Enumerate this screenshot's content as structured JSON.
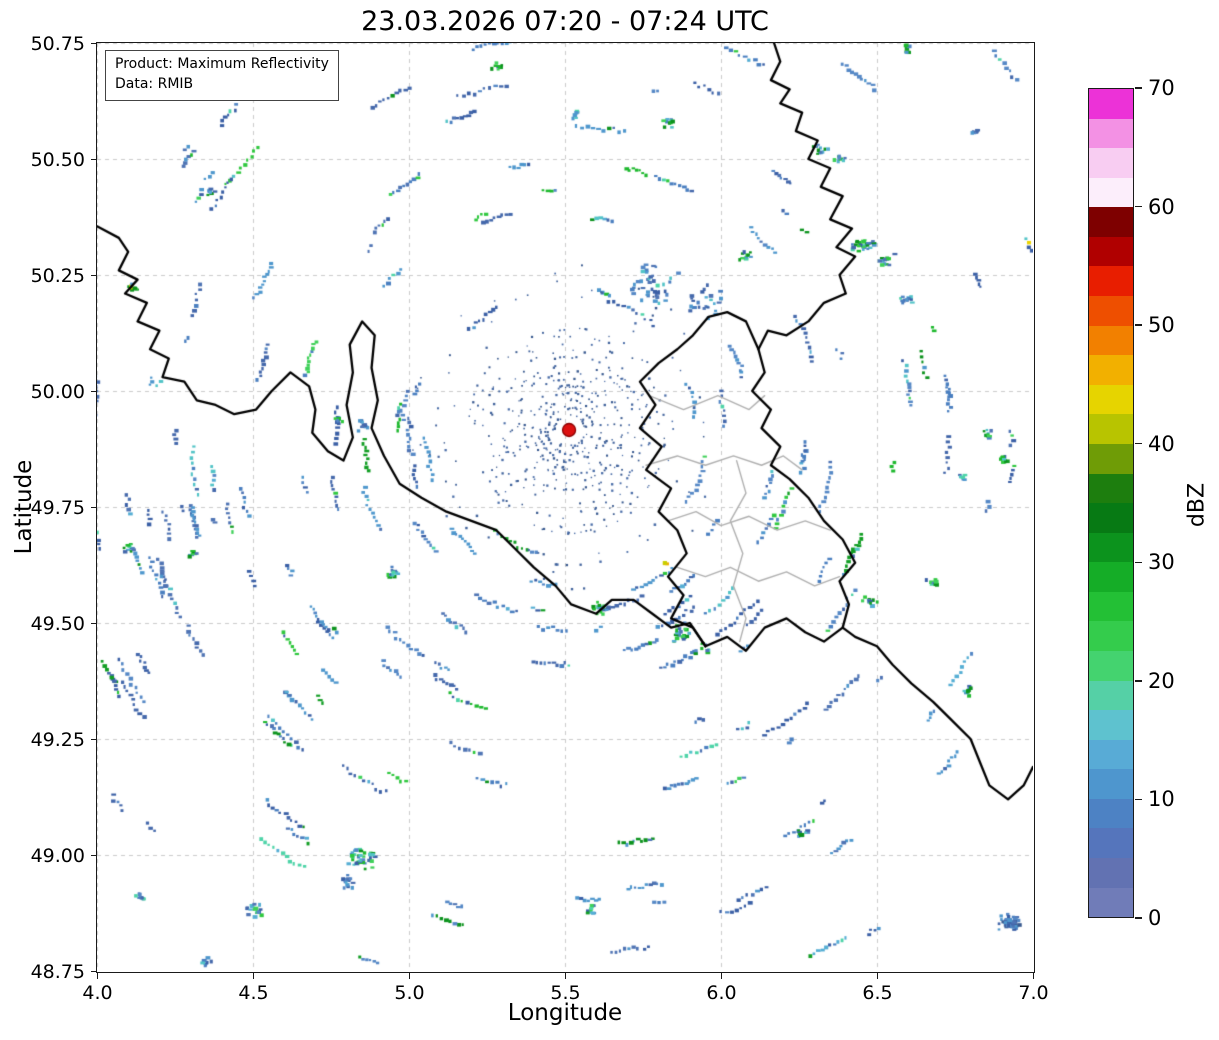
{
  "title": "23.03.2026 07:20 - 07:24 UTC",
  "info_box": {
    "line1": "Product: Maximum Reflectivity",
    "line2": "Data: RMIB"
  },
  "axes": {
    "xlabel": "Longitude",
    "ylabel": "Latitude",
    "x_ticks": [
      4.0,
      4.5,
      5.0,
      5.5,
      6.0,
      6.5,
      7.0
    ],
    "x_tick_labels": [
      "4.0",
      "4.5",
      "5.0",
      "5.5",
      "6.0",
      "6.5",
      "7.0"
    ],
    "y_ticks": [
      48.75,
      49.0,
      49.25,
      49.5,
      49.75,
      50.0,
      50.25,
      50.5,
      50.75
    ],
    "y_tick_labels": [
      "48.75",
      "49.00",
      "49.25",
      "49.50",
      "49.75",
      "50.00",
      "50.25",
      "50.50",
      "50.75"
    ],
    "xlim": [
      4.0,
      7.0
    ],
    "ylim": [
      48.75,
      50.75
    ],
    "grid": "dashed",
    "grid_color": "#cccccc"
  },
  "colorbar": {
    "label": "dBZ",
    "ticks": [
      0,
      10,
      20,
      30,
      40,
      50,
      60,
      70
    ],
    "tick_labels": [
      "0",
      "10",
      "20",
      "30",
      "40",
      "50",
      "60",
      "70"
    ],
    "min": 0,
    "max": 70,
    "band_step": 2.5,
    "band_colors": [
      "#707cb8",
      "#6272b2",
      "#5575bc",
      "#4d82c4",
      "#4e96ce",
      "#58abd6",
      "#5ec2cf",
      "#55d0a6",
      "#44d36f",
      "#34cc4c",
      "#23c035",
      "#15ad27",
      "#0c931d",
      "#077a14",
      "#1d7e0e",
      "#6f9c06",
      "#b8c400",
      "#e6d400",
      "#f2b000",
      "#f28000",
      "#ee4f00",
      "#e81e00",
      "#b00000",
      "#7e0000",
      "#fceefb",
      "#f8cdf2",
      "#f391e4",
      "#ec32d7"
    ]
  },
  "chart_data": {
    "type": "heatmap",
    "title": "23.03.2026 07:20 - 07:24 UTC",
    "xlabel": "Longitude",
    "ylabel": "Latitude",
    "value_label": "dBZ",
    "description": "Weather radar maximum reflectivity composite over Belgium/Luxembourg region; scattered low-dBZ clutter echoes arranged in concentric arcs around the radar site, with national borders in black and regional borders in gray.",
    "extent": {
      "lon_min": 4.0,
      "lon_max": 7.0,
      "lat_min": 48.75,
      "lat_max": 50.75
    },
    "radar_site": {
      "lon": 5.513,
      "lat": 49.916,
      "marker": "circle",
      "marker_color": "#dd1111",
      "marker_edge": "#8b0000"
    },
    "value_range_observed": [
      0,
      45
    ],
    "background_color": "#ffffff",
    "border_color_national": "#000000",
    "border_color_regional": "#b0b0b0",
    "palettes": {
      "blue": [
        "#3a5fa5",
        "#4468ab",
        "#4f74b4",
        "#4a7fc0",
        "#5588c6",
        "#4e97cd"
      ],
      "cyan": [
        "#55aed4",
        "#52c4c7",
        "#4ed4a8"
      ],
      "green": [
        "#3fd159",
        "#2fc83e",
        "#1eb92e",
        "#129e24",
        "#0c931d"
      ],
      "strong": [
        "#c9cf00",
        "#ecd400",
        "#f0b000"
      ],
      "center": [
        "#38598f",
        "#41639c",
        "#4a6da8"
      ]
    },
    "noise": {
      "seed": 20260323,
      "streak_count": 250,
      "min_r": 120,
      "max_r": 620,
      "center_count": 520,
      "center_r_min": 16,
      "center_r_max": 108,
      "mid_ring_count": 70,
      "mid_r_min": 118,
      "mid_r_max": 163
    },
    "clusters": [
      {
        "lon": 5.276,
        "lat": 50.703,
        "n": 8,
        "s": 7,
        "type": "green"
      },
      {
        "lon": 5.532,
        "lat": 50.599,
        "n": 6,
        "s": 6,
        "type": "blue"
      },
      {
        "lon": 5.83,
        "lat": 50.584,
        "n": 10,
        "s": 8,
        "type": "green"
      },
      {
        "lon": 6.317,
        "lat": 50.524,
        "n": 12,
        "s": 9,
        "type": "mix"
      },
      {
        "lon": 6.375,
        "lat": 50.502,
        "n": 8,
        "s": 7,
        "type": "green"
      },
      {
        "lon": 6.59,
        "lat": 50.739,
        "n": 6,
        "s": 6,
        "type": "green"
      },
      {
        "lon": 4.356,
        "lat": 50.433,
        "n": 8,
        "s": 7,
        "type": "green"
      },
      {
        "lon": 4.106,
        "lat": 50.224,
        "n": 10,
        "s": 6,
        "type": "yellowgreen"
      },
      {
        "lon": 6.452,
        "lat": 50.319,
        "n": 28,
        "s": 13,
        "type": "green"
      },
      {
        "lon": 6.523,
        "lat": 50.287,
        "n": 14,
        "s": 10,
        "type": "mix"
      },
      {
        "lon": 6.077,
        "lat": 50.297,
        "n": 10,
        "s": 8,
        "type": "green"
      },
      {
        "lon": 6.59,
        "lat": 50.196,
        "n": 12,
        "s": 9,
        "type": "blue"
      },
      {
        "lon": 6.81,
        "lat": 50.56,
        "n": 6,
        "s": 6,
        "type": "blue"
      },
      {
        "lon": 5.772,
        "lat": 50.228,
        "n": 40,
        "s": 34,
        "type": "blue"
      },
      {
        "lon": 5.933,
        "lat": 50.196,
        "n": 25,
        "s": 26,
        "type": "blue"
      },
      {
        "lon": 4.77,
        "lat": 49.944,
        "n": 8,
        "s": 7,
        "type": "green"
      },
      {
        "lon": 4.85,
        "lat": 49.93,
        "n": 10,
        "s": 8,
        "type": "blue"
      },
      {
        "lon": 6.853,
        "lat": 49.912,
        "n": 10,
        "s": 7,
        "type": "green"
      },
      {
        "lon": 6.901,
        "lat": 49.856,
        "n": 8,
        "s": 6,
        "type": "green"
      },
      {
        "lon": 6.772,
        "lat": 49.819,
        "n": 6,
        "s": 6,
        "type": "blue"
      },
      {
        "lon": 4.096,
        "lat": 49.664,
        "n": 10,
        "s": 7,
        "type": "green"
      },
      {
        "lon": 4.298,
        "lat": 49.651,
        "n": 8,
        "s": 7,
        "type": "green"
      },
      {
        "lon": 4.949,
        "lat": 49.61,
        "n": 12,
        "s": 9,
        "type": "green"
      },
      {
        "lon": 5.814,
        "lat": 49.631,
        "n": 3,
        "s": 3,
        "type": "yellow"
      },
      {
        "lon": 5.612,
        "lat": 49.532,
        "n": 16,
        "s": 11,
        "type": "green"
      },
      {
        "lon": 5.869,
        "lat": 49.481,
        "n": 20,
        "s": 14,
        "type": "green"
      },
      {
        "lon": 5.933,
        "lat": 49.446,
        "n": 12,
        "s": 10,
        "type": "mix"
      },
      {
        "lon": 6.471,
        "lat": 49.549,
        "n": 12,
        "s": 9,
        "type": "green"
      },
      {
        "lon": 6.67,
        "lat": 49.588,
        "n": 8,
        "s": 7,
        "type": "green"
      },
      {
        "lon": 6.782,
        "lat": 49.356,
        "n": 8,
        "s": 7,
        "type": "green"
      },
      {
        "lon": 6.253,
        "lat": 49.05,
        "n": 10,
        "s": 8,
        "type": "green"
      },
      {
        "lon": 5.58,
        "lat": 48.888,
        "n": 10,
        "s": 8,
        "type": "green"
      },
      {
        "lon": 4.843,
        "lat": 48.994,
        "n": 40,
        "s": 15,
        "type": "mix"
      },
      {
        "lon": 4.795,
        "lat": 48.946,
        "n": 14,
        "s": 9,
        "type": "blue"
      },
      {
        "lon": 4.5,
        "lat": 48.886,
        "n": 18,
        "s": 10,
        "type": "mix"
      },
      {
        "lon": 4.128,
        "lat": 48.912,
        "n": 10,
        "s": 7,
        "type": "blue"
      },
      {
        "lon": 6.92,
        "lat": 48.856,
        "n": 45,
        "s": 13,
        "type": "dense_blue"
      },
      {
        "lon": 4.346,
        "lat": 48.774,
        "n": 8,
        "s": 7,
        "type": "blue"
      }
    ],
    "borders": {
      "national": [
        [
          [
            4.0,
            50.355
          ],
          [
            4.07,
            50.33
          ],
          [
            4.1,
            50.3
          ],
          [
            4.07,
            50.26
          ],
          [
            4.13,
            50.24
          ],
          [
            4.09,
            50.21
          ],
          [
            4.16,
            50.19
          ],
          [
            4.13,
            50.15
          ],
          [
            4.2,
            50.13
          ],
          [
            4.17,
            50.09
          ],
          [
            4.23,
            50.07
          ],
          [
            4.21,
            50.03
          ],
          [
            4.28,
            50.02
          ],
          [
            4.32,
            49.98
          ],
          [
            4.38,
            49.97
          ],
          [
            4.44,
            49.95
          ],
          [
            4.51,
            49.96
          ],
          [
            4.56,
            50.0
          ],
          [
            4.62,
            50.04
          ],
          [
            4.68,
            50.01
          ],
          [
            4.7,
            49.96
          ],
          [
            4.69,
            49.91
          ],
          [
            4.74,
            49.87
          ],
          [
            4.79,
            49.85
          ],
          [
            4.82,
            49.9
          ],
          [
            4.8,
            49.97
          ],
          [
            4.82,
            50.04
          ],
          [
            4.81,
            50.1
          ],
          [
            4.85,
            50.15
          ],
          [
            4.89,
            50.12
          ],
          [
            4.88,
            50.05
          ],
          [
            4.9,
            49.98
          ],
          [
            4.88,
            49.92
          ],
          [
            4.92,
            49.86
          ],
          [
            4.97,
            49.8
          ],
          [
            5.04,
            49.77
          ],
          [
            5.12,
            49.74
          ],
          [
            5.2,
            49.72
          ],
          [
            5.28,
            49.7
          ],
          [
            5.34,
            49.66
          ],
          [
            5.4,
            49.62
          ],
          [
            5.47,
            49.58
          ],
          [
            5.52,
            49.54
          ],
          [
            5.6,
            49.52
          ],
          [
            5.65,
            49.55
          ],
          [
            5.72,
            49.55
          ],
          [
            5.78,
            49.52
          ],
          [
            5.84,
            49.49
          ],
          [
            5.9,
            49.5
          ],
          [
            5.95,
            49.45
          ]
        ],
        [
          [
            6.17,
            50.75
          ],
          [
            6.19,
            50.71
          ],
          [
            6.16,
            50.67
          ],
          [
            6.22,
            50.65
          ],
          [
            6.19,
            50.62
          ],
          [
            6.26,
            50.6
          ],
          [
            6.24,
            50.56
          ],
          [
            6.31,
            50.54
          ],
          [
            6.28,
            50.5
          ],
          [
            6.35,
            50.48
          ],
          [
            6.32,
            50.44
          ],
          [
            6.39,
            50.42
          ],
          [
            6.35,
            50.37
          ],
          [
            6.42,
            50.35
          ],
          [
            6.37,
            50.31
          ],
          [
            6.43,
            50.29
          ],
          [
            6.38,
            50.25
          ],
          [
            6.4,
            50.21
          ],
          [
            6.33,
            50.19
          ],
          [
            6.28,
            50.15
          ],
          [
            6.21,
            50.12
          ],
          [
            6.15,
            50.13
          ],
          [
            6.12,
            50.09
          ],
          [
            6.14,
            50.04
          ],
          [
            6.1,
            50.0
          ],
          [
            6.16,
            49.96
          ],
          [
            6.13,
            49.92
          ],
          [
            6.19,
            49.88
          ],
          [
            6.16,
            49.84
          ],
          [
            6.22,
            49.81
          ],
          [
            6.28,
            49.77
          ],
          [
            6.33,
            49.72
          ],
          [
            6.39,
            49.68
          ],
          [
            6.43,
            49.63
          ],
          [
            6.38,
            49.59
          ],
          [
            6.41,
            49.54
          ],
          [
            6.39,
            49.49
          ],
          [
            6.43,
            49.47
          ],
          [
            6.5,
            49.45
          ],
          [
            6.55,
            49.41
          ],
          [
            6.61,
            49.37
          ],
          [
            6.68,
            49.33
          ],
          [
            6.74,
            49.29
          ],
          [
            6.8,
            49.25
          ],
          [
            6.83,
            49.2
          ],
          [
            6.86,
            49.15
          ],
          [
            6.92,
            49.12
          ],
          [
            6.97,
            49.15
          ],
          [
            7.0,
            49.19
          ]
        ],
        [
          [
            5.95,
            49.45
          ],
          [
            5.91,
            49.49
          ],
          [
            5.84,
            49.51
          ],
          [
            5.88,
            49.56
          ],
          [
            5.83,
            49.6
          ],
          [
            5.89,
            49.65
          ],
          [
            5.86,
            49.7
          ],
          [
            5.8,
            49.74
          ],
          [
            5.84,
            49.79
          ],
          [
            5.76,
            49.83
          ],
          [
            5.81,
            49.88
          ],
          [
            5.74,
            49.92
          ],
          [
            5.79,
            49.97
          ],
          [
            5.74,
            50.02
          ],
          [
            5.8,
            50.06
          ],
          [
            5.86,
            50.09
          ],
          [
            5.91,
            50.12
          ],
          [
            5.96,
            50.16
          ],
          [
            6.02,
            50.17
          ],
          [
            6.08,
            50.15
          ],
          [
            6.12,
            50.09
          ]
        ],
        [
          [
            5.95,
            49.45
          ],
          [
            6.02,
            49.47
          ],
          [
            6.08,
            49.44
          ],
          [
            6.14,
            49.49
          ],
          [
            6.21,
            49.51
          ],
          [
            6.27,
            49.48
          ],
          [
            6.33,
            49.46
          ],
          [
            6.39,
            49.49
          ]
        ]
      ],
      "regional": [
        [
          [
            5.76,
            49.84
          ],
          [
            5.86,
            49.86
          ],
          [
            5.95,
            49.84
          ],
          [
            6.04,
            49.86
          ],
          [
            6.13,
            49.84
          ],
          [
            6.2,
            49.86
          ],
          [
            6.26,
            49.83
          ]
        ],
        [
          [
            5.83,
            49.72
          ],
          [
            5.92,
            49.74
          ],
          [
            6.0,
            49.71
          ],
          [
            6.09,
            49.73
          ],
          [
            6.18,
            49.7
          ],
          [
            6.27,
            49.72
          ],
          [
            6.35,
            49.7
          ]
        ],
        [
          [
            6.05,
            49.85
          ],
          [
            6.08,
            49.78
          ],
          [
            6.03,
            49.72
          ],
          [
            6.07,
            49.65
          ],
          [
            6.04,
            49.58
          ],
          [
            6.08,
            49.51
          ],
          [
            6.06,
            49.46
          ]
        ],
        [
          [
            5.86,
            49.62
          ],
          [
            5.95,
            49.6
          ],
          [
            6.03,
            49.62
          ],
          [
            6.12,
            49.59
          ],
          [
            6.21,
            49.61
          ],
          [
            6.3,
            49.58
          ],
          [
            6.38,
            49.6
          ]
        ],
        [
          [
            5.77,
            49.99
          ],
          [
            5.88,
            49.96
          ],
          [
            5.99,
            49.99
          ],
          [
            6.09,
            49.96
          ],
          [
            6.14,
            49.99
          ]
        ]
      ]
    }
  }
}
